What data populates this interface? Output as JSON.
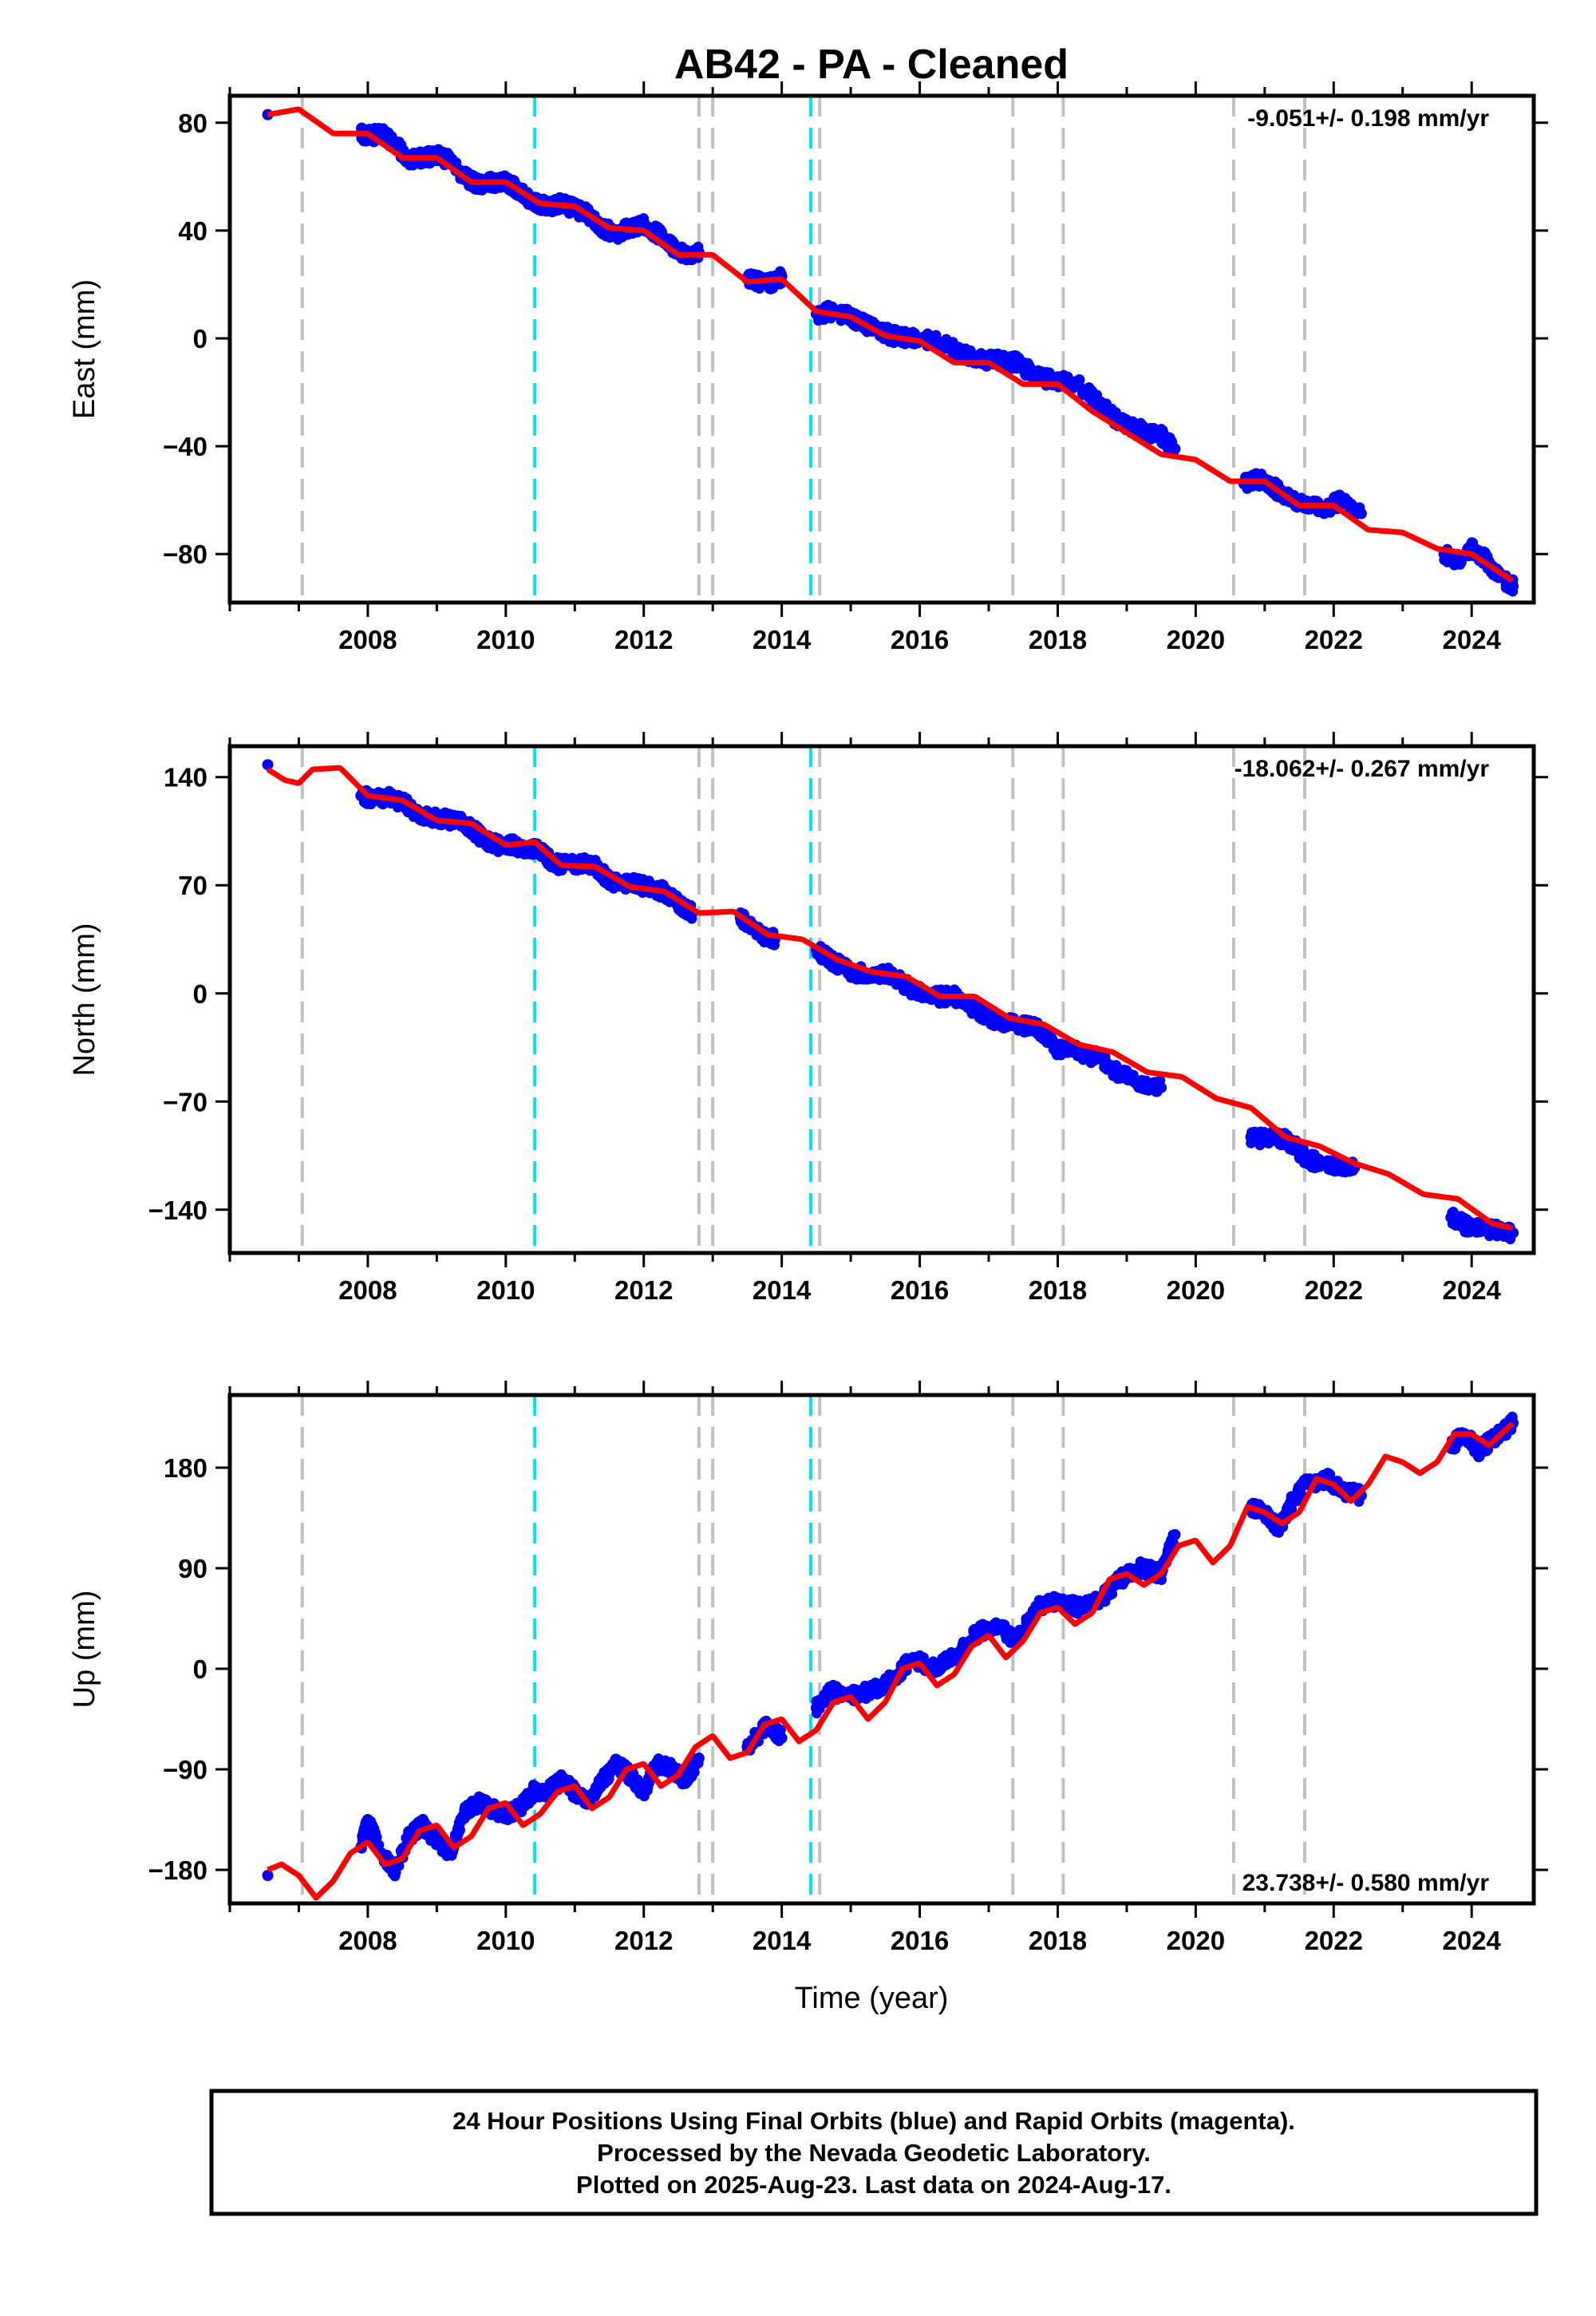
{
  "title": "AB42  - PA - Cleaned",
  "xlabel": "Time (year)",
  "footer": [
    "24 Hour Positions Using Final Orbits (blue) and Rapid Orbits (magenta).",
    "Processed by the Nevada Geodetic Laboratory.",
    "Plotted on 2025-Aug-23. Last data on 2024-Aug-17."
  ],
  "colors": {
    "data": "#0000ff",
    "model": "#ff0000",
    "gray_event": "#c0c0c0",
    "cyan_event": "#00e5ee"
  },
  "events": {
    "gray": [
      2007.05,
      2012.8,
      2013.0,
      2014.55,
      2017.35,
      2018.08,
      2020.55,
      2021.58
    ],
    "cyan": [
      2010.42,
      2014.42
    ]
  },
  "chart_data": [
    {
      "type": "scatter",
      "ylabel": "East (mm)",
      "rate": "-9.051+/- 0.198 mm/yr",
      "rate_position": "top-right",
      "xlim": [
        2006.0,
        2024.9
      ],
      "ylim": [
        -98,
        90
      ],
      "xticks": [
        2008,
        2010,
        2012,
        2014,
        2016,
        2018,
        2020,
        2022,
        2024
      ],
      "yticks": [
        80,
        40,
        0,
        -40,
        -80
      ],
      "ytick_labels": [
        "80",
        "40",
        "0",
        "−40",
        "−80"
      ],
      "series": [
        {
          "role": "data",
          "x": [
            2006.55,
            2007.9,
            2008.0,
            2008.2,
            2008.4,
            2008.6,
            2008.8,
            2009.0,
            2009.2,
            2009.4,
            2009.6,
            2009.8,
            2010.0,
            2010.2,
            2010.4,
            2010.6,
            2010.8,
            2011.0,
            2011.2,
            2011.4,
            2011.6,
            2011.8,
            2012.0,
            2012.2,
            2012.4,
            2012.6,
            2012.8,
            2013.5,
            2013.8,
            2014.0,
            2014.5,
            2014.7,
            2015.0,
            2015.3,
            2015.6,
            2015.9,
            2016.2,
            2016.5,
            2016.8,
            2017.1,
            2017.4,
            2017.7,
            2018.0,
            2018.3,
            2018.6,
            2018.9,
            2019.2,
            2019.5,
            2019.7,
            2020.7,
            2020.9,
            2021.1,
            2021.3,
            2021.6,
            2021.9,
            2022.1,
            2022.4,
            2023.6,
            2023.8,
            2024.0,
            2024.2,
            2024.4,
            2024.6
          ],
          "y": [
            83,
            76,
            75,
            76,
            72,
            66,
            67,
            68,
            66,
            60,
            57,
            58,
            58,
            55,
            50,
            49,
            50,
            48,
            46,
            41,
            39,
            41,
            42,
            39,
            34,
            31,
            32,
            22,
            20,
            23,
            9,
            10,
            8,
            4,
            1,
            0,
            -1,
            -4,
            -8,
            -8,
            -9,
            -14,
            -16,
            -17,
            -24,
            -31,
            -34,
            -36,
            -41,
            -54,
            -52,
            -55,
            -58,
            -62,
            -63,
            -60,
            -65,
            -80,
            -82,
            -78,
            -82,
            -88,
            -92
          ]
        },
        {
          "role": "model",
          "x": [
            2006.55,
            2007.0,
            2007.5,
            2008.0,
            2008.5,
            2009.0,
            2009.5,
            2010.0,
            2010.5,
            2011.0,
            2011.5,
            2012.0,
            2012.5,
            2013.0,
            2013.5,
            2014.0,
            2014.5,
            2015.0,
            2015.5,
            2016.0,
            2016.5,
            2017.0,
            2017.5,
            2018.0,
            2018.5,
            2019.0,
            2019.5,
            2020.0,
            2020.5,
            2021.0,
            2021.5,
            2022.0,
            2022.5,
            2023.0,
            2023.5,
            2024.0,
            2024.6
          ],
          "y": [
            83,
            85,
            76,
            76,
            67,
            67,
            58,
            58,
            50,
            49,
            41,
            40,
            31,
            31,
            21,
            22,
            10,
            8,
            1,
            -1,
            -9,
            -9,
            -17,
            -17,
            -27,
            -35,
            -43,
            -45,
            -53,
            -53,
            -62,
            -62,
            -71,
            -72,
            -78,
            -80,
            -90
          ]
        }
      ]
    },
    {
      "type": "scatter",
      "ylabel": "North (mm)",
      "rate": "-18.062+/- 0.267 mm/yr",
      "rate_position": "top-right",
      "xlim": [
        2006.0,
        2024.9
      ],
      "ylim": [
        -168,
        160
      ],
      "xticks": [
        2008,
        2010,
        2012,
        2014,
        2016,
        2018,
        2020,
        2022,
        2024
      ],
      "yticks": [
        140,
        70,
        0,
        -70,
        -140
      ],
      "ytick_labels": [
        "140",
        "70",
        "0",
        "−70",
        "−140"
      ],
      "series": [
        {
          "role": "data",
          "x": [
            2006.55,
            2007.9,
            2008.1,
            2008.3,
            2008.5,
            2008.7,
            2008.9,
            2009.1,
            2009.3,
            2009.5,
            2009.7,
            2009.9,
            2010.1,
            2010.3,
            2010.5,
            2010.7,
            2010.9,
            2011.1,
            2011.3,
            2011.5,
            2011.7,
            2011.9,
            2012.1,
            2012.3,
            2012.5,
            2012.7,
            2013.4,
            2013.7,
            2013.9,
            2014.5,
            2014.7,
            2015.0,
            2015.3,
            2015.6,
            2015.9,
            2016.2,
            2016.5,
            2016.8,
            2017.1,
            2017.4,
            2017.7,
            2018.0,
            2018.3,
            2018.6,
            2018.9,
            2019.2,
            2019.5,
            2020.8,
            2021.0,
            2021.2,
            2021.4,
            2021.6,
            2021.9,
            2022.1,
            2022.3,
            2023.7,
            2023.9,
            2024.1,
            2024.3,
            2024.6
          ],
          "y": [
            148,
            128,
            126,
            127,
            124,
            117,
            114,
            113,
            112,
            107,
            99,
            96,
            96,
            94,
            92,
            84,
            83,
            84,
            82,
            73,
            70,
            71,
            68,
            66,
            58,
            52,
            49,
            38,
            35,
            28,
            22,
            14,
            12,
            12,
            2,
            -2,
            -2,
            -10,
            -18,
            -20,
            -22,
            -36,
            -38,
            -42,
            -52,
            -58,
            -61,
            -93,
            -94,
            -93,
            -97,
            -107,
            -111,
            -111,
            -113,
            -145,
            -150,
            -151,
            -153,
            -155
          ]
        },
        {
          "role": "model",
          "x": [
            2006.55,
            2006.8,
            2007.0,
            2007.2,
            2007.6,
            2008.0,
            2008.5,
            2009.0,
            2009.5,
            2010.0,
            2010.42,
            2010.8,
            2011.3,
            2011.8,
            2012.3,
            2012.8,
            2013.3,
            2013.8,
            2014.3,
            2014.8,
            2015.3,
            2015.8,
            2016.3,
            2016.8,
            2017.3,
            2017.8,
            2018.3,
            2018.8,
            2019.3,
            2019.8,
            2020.3,
            2020.8,
            2021.3,
            2021.8,
            2022.3,
            2022.8,
            2023.3,
            2023.8,
            2024.3,
            2024.6
          ],
          "y": [
            145,
            138,
            136,
            145,
            146,
            128,
            125,
            112,
            110,
            96,
            98,
            83,
            82,
            69,
            66,
            52,
            53,
            38,
            35,
            22,
            14,
            11,
            -2,
            -2,
            -16,
            -20,
            -33,
            -38,
            -51,
            -54,
            -68,
            -74,
            -93,
            -99,
            -110,
            -117,
            -130,
            -133,
            -149,
            -152
          ]
        }
      ]
    },
    {
      "type": "scatter",
      "ylabel": "Up (mm)",
      "rate": "23.738+/- 0.580 mm/yr",
      "rate_position": "bottom-right",
      "xlim": [
        2006.0,
        2024.9
      ],
      "ylim": [
        -210,
        245
      ],
      "xticks": [
        2008,
        2010,
        2012,
        2014,
        2016,
        2018,
        2020,
        2022,
        2024
      ],
      "yticks": [
        180,
        90,
        0,
        -90,
        -180
      ],
      "ytick_labels": [
        "180",
        "90",
        "0",
        "−90",
        "−180"
      ],
      "series": [
        {
          "role": "data",
          "x": [
            2006.55,
            2007.9,
            2008.0,
            2008.2,
            2008.4,
            2008.6,
            2008.8,
            2009.0,
            2009.2,
            2009.4,
            2009.6,
            2009.8,
            2010.0,
            2010.2,
            2010.4,
            2010.6,
            2010.8,
            2011.0,
            2011.2,
            2011.4,
            2011.6,
            2011.8,
            2012.0,
            2012.2,
            2012.4,
            2012.6,
            2012.8,
            2013.5,
            2013.8,
            2014.0,
            2014.5,
            2014.7,
            2015.0,
            2015.3,
            2015.6,
            2015.9,
            2016.2,
            2016.5,
            2016.8,
            2017.1,
            2017.4,
            2017.7,
            2018.0,
            2018.3,
            2018.6,
            2018.9,
            2019.2,
            2019.5,
            2019.7,
            2020.8,
            2021.0,
            2021.2,
            2021.4,
            2021.6,
            2021.9,
            2022.1,
            2022.4,
            2023.7,
            2023.9,
            2024.1,
            2024.3,
            2024.6
          ],
          "y": [
            -185,
            -160,
            -135,
            -165,
            -180,
            -150,
            -140,
            -155,
            -165,
            -130,
            -120,
            -125,
            -130,
            -125,
            -110,
            -110,
            -100,
            -110,
            -120,
            -100,
            -85,
            -95,
            -110,
            -85,
            -90,
            -100,
            -80,
            -70,
            -50,
            -62,
            -35,
            -20,
            -25,
            -20,
            -10,
            10,
            0,
            10,
            30,
            40,
            25,
            55,
            60,
            55,
            60,
            80,
            90,
            85,
            120,
            145,
            140,
            125,
            150,
            165,
            170,
            160,
            155,
            200,
            210,
            195,
            205,
            220
          ]
        },
        {
          "role": "model",
          "x": [
            2006.55,
            2006.75,
            2007.0,
            2007.25,
            2007.5,
            2007.75,
            2008.0,
            2008.25,
            2008.5,
            2008.75,
            2009.0,
            2009.25,
            2009.5,
            2009.75,
            2010.0,
            2010.25,
            2010.5,
            2010.75,
            2011.0,
            2011.25,
            2011.5,
            2011.75,
            2012.0,
            2012.25,
            2012.5,
            2012.75,
            2013.0,
            2013.25,
            2013.5,
            2013.75,
            2014.0,
            2014.25,
            2014.5,
            2014.75,
            2015.0,
            2015.25,
            2015.5,
            2015.75,
            2016.0,
            2016.25,
            2016.5,
            2016.75,
            2017.0,
            2017.25,
            2017.5,
            2017.75,
            2018.0,
            2018.25,
            2018.5,
            2018.75,
            2019.0,
            2019.25,
            2019.5,
            2019.75,
            2020.0,
            2020.25,
            2020.5,
            2020.75,
            2021.0,
            2021.25,
            2021.5,
            2021.75,
            2022.0,
            2022.25,
            2022.5,
            2022.75,
            2023.0,
            2023.25,
            2023.5,
            2023.75,
            2024.0,
            2024.25,
            2024.6
          ],
          "y": [
            -180,
            -175,
            -185,
            -205,
            -190,
            -165,
            -155,
            -175,
            -170,
            -145,
            -140,
            -160,
            -150,
            -125,
            -120,
            -140,
            -130,
            -110,
            -105,
            -125,
            -115,
            -90,
            -85,
            -105,
            -95,
            -70,
            -60,
            -80,
            -75,
            -50,
            -45,
            -65,
            -55,
            -30,
            -25,
            -45,
            -30,
            0,
            5,
            -15,
            -5,
            20,
            30,
            10,
            25,
            50,
            55,
            40,
            50,
            80,
            85,
            75,
            85,
            110,
            115,
            95,
            110,
            145,
            140,
            130,
            140,
            170,
            165,
            150,
            165,
            190,
            185,
            175,
            185,
            210,
            210,
            200,
            220
          ]
        }
      ]
    }
  ]
}
